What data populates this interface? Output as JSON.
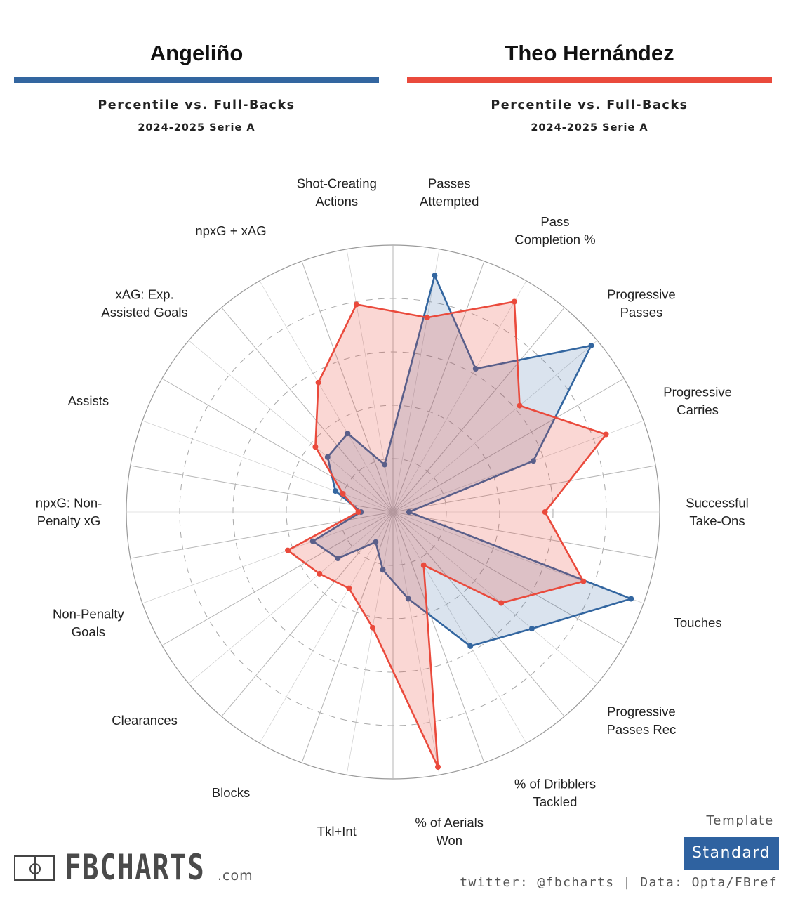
{
  "players": [
    {
      "name": "Angeliño",
      "subtitle": "Percentile vs. Full-Backs",
      "season": "2024-2025 Serie A",
      "color": "#3366a0",
      "fill": "rgba(51,102,160,0.18)"
    },
    {
      "name": "Theo Hernández",
      "subtitle": "Percentile vs. Full-Backs",
      "season": "2024-2025 Serie A",
      "color": "#ea4a3c",
      "fill": "rgba(234,74,60,0.22)"
    }
  ],
  "chart_data": {
    "type": "radar",
    "rmax": 100,
    "ring_levels": [
      20,
      40,
      60,
      80
    ],
    "ring_style": "dashed",
    "categories": [
      "Passes Attempted",
      "Pass Completion %",
      "Progressive Passes",
      "Progressive Carries",
      "Successful Take-Ons",
      "Touches",
      "Progressive Passes Rec",
      "% of Dribblers Tackled",
      "% of Aerials Won",
      "Tkl+Int",
      "Blocks",
      "Clearances",
      "Non-Penalty Goals",
      "npxG: Non-Penalty xG",
      "Assists",
      "xAG: Exp. Assisted Goals",
      "npxG + xAG",
      "Shot-Creating Actions"
    ],
    "label_lines": [
      [
        "Passes",
        "Attempted"
      ],
      [
        "Pass",
        "Completion %"
      ],
      [
        "Progressive",
        "Passes"
      ],
      [
        "Progressive",
        "Carries"
      ],
      [
        "Successful",
        "Take-Ons"
      ],
      [
        "Touches"
      ],
      [
        "Progressive",
        "Passes Rec"
      ],
      [
        "% of Dribblers",
        "Tackled"
      ],
      [
        "% of Aerials",
        "Won"
      ],
      [
        "Tkl+Int"
      ],
      [
        "Blocks"
      ],
      [
        "Clearances"
      ],
      [
        "Non-Penalty",
        "Goals"
      ],
      [
        "npxG: Non-",
        "Penalty xG"
      ],
      [
        "Assists"
      ],
      [
        "xAG: Exp.",
        "Assisted Goals"
      ],
      [
        "npxG + xAG"
      ],
      [
        "Shot-Creating",
        "Actions"
      ]
    ],
    "series": [
      {
        "name": "Angeliño",
        "values": [
          90,
          62,
          97,
          56,
          6,
          95,
          68,
          58,
          33,
          22,
          13,
          27,
          32,
          12,
          23,
          32,
          34,
          18
        ]
      },
      {
        "name": "Theo Hernández",
        "values": [
          74,
          91,
          62,
          85,
          57,
          76,
          53,
          23,
          97,
          44,
          33,
          36,
          42,
          13,
          20,
          38,
          56,
          79
        ]
      }
    ]
  },
  "template": {
    "label": "Template",
    "button": "Standard"
  },
  "footer": {
    "logo_text": "FBCHARTS",
    "logo_suffix": ".com",
    "credit": "twitter: @fbcharts | Data: Opta/FBref"
  }
}
